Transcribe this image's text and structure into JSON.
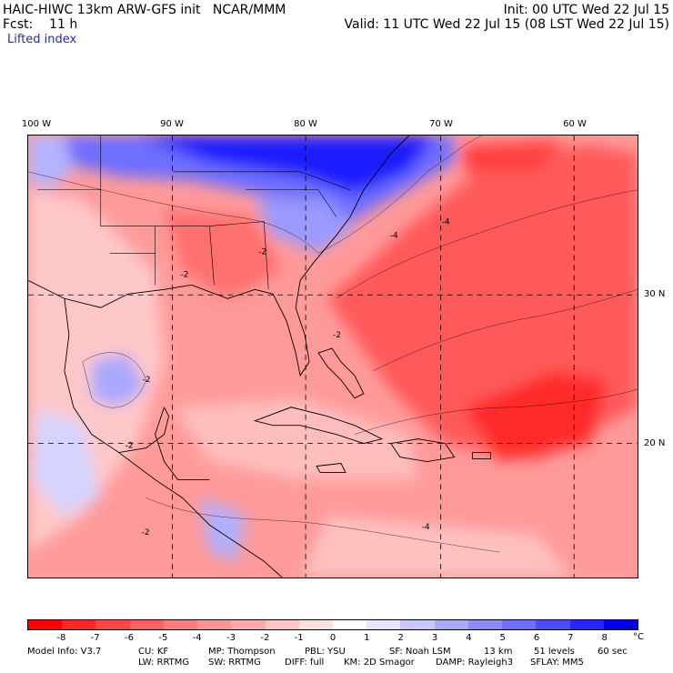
{
  "header": {
    "title_line": "HAIC-HIWC 13km ARW-GFS init   NCAR/MMM",
    "fcst_line": "Fcst:    11 h",
    "field_name": "Lifted index",
    "init_line": "Init: 00 UTC Wed 22 Jul 15",
    "valid_line": "Valid: 11 UTC Wed 22 Jul 15 (08 LST Wed 22 Jul 15)"
  },
  "map": {
    "lon_labels": [
      "100 W",
      "90 W",
      "80 W",
      "70 W",
      "60 W"
    ],
    "lat_labels": [
      "30 N",
      "20 N"
    ],
    "contour_labels": [
      "-2",
      "-4"
    ]
  },
  "colorbar": {
    "colors": [
      "#ff0000",
      "#ff2626",
      "#ff4646",
      "#ff6262",
      "#ff7c7c",
      "#ff9494",
      "#ffaaaa",
      "#ffc4c4",
      "#ffe0e0",
      "#ffffff",
      "#e6e6ff",
      "#c8c8ff",
      "#aaaaff",
      "#8c8cff",
      "#6e6eff",
      "#4b4bff",
      "#2626ff",
      "#0000ee"
    ],
    "ticks": [
      "-8",
      "-7",
      "-6",
      "-5",
      "-4",
      "-3",
      "-2",
      "-1",
      "0",
      "1",
      "2",
      "3",
      "4",
      "5",
      "6",
      "7",
      "8"
    ],
    "unit": "°C"
  },
  "footer": {
    "row1": [
      "Model Info: V3.7",
      "CU: KF",
      "MP: Thompson",
      "PBL: YSU",
      "SF: Noah LSM",
      "13 km",
      "51 levels",
      "60 sec"
    ],
    "row2": [
      "LW: RRTMG",
      "SW: RRTMG",
      "DIFF: full",
      "KM: 2D Smagor",
      "DAMP: Rayleigh3",
      "SFLAY: MM5"
    ]
  }
}
